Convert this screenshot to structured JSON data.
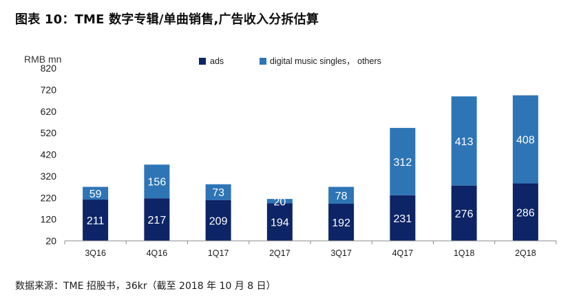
{
  "title": "图表 10：TME 数字专辑/单曲销售,广告收入分拆估算",
  "source": "数据来源：TME 招股书，36kr（截至 2018 年 10 月 8 日）",
  "colors": {
    "ads": "#0d2466",
    "digital": "#2e75b6",
    "axis": "#8c8c8c"
  },
  "chart_data": {
    "type": "bar",
    "stacked": true,
    "ylabel": "RMB mn",
    "ylim": [
      20,
      820
    ],
    "yticks": [
      20,
      120,
      220,
      320,
      420,
      520,
      620,
      720,
      820
    ],
    "grid": false,
    "legend_position": "top",
    "categories": [
      "3Q16",
      "4Q16",
      "1Q17",
      "2Q17",
      "3Q17",
      "4Q17",
      "1Q18",
      "2Q18"
    ],
    "series": [
      {
        "name": "ads",
        "color": "#0d2466",
        "values": [
          211,
          217,
          209,
          194,
          192,
          231,
          276,
          286
        ]
      },
      {
        "name": "digital music singles， others",
        "color": "#2e75b6",
        "values": [
          59,
          156,
          73,
          20,
          78,
          312,
          413,
          408
        ]
      }
    ]
  }
}
